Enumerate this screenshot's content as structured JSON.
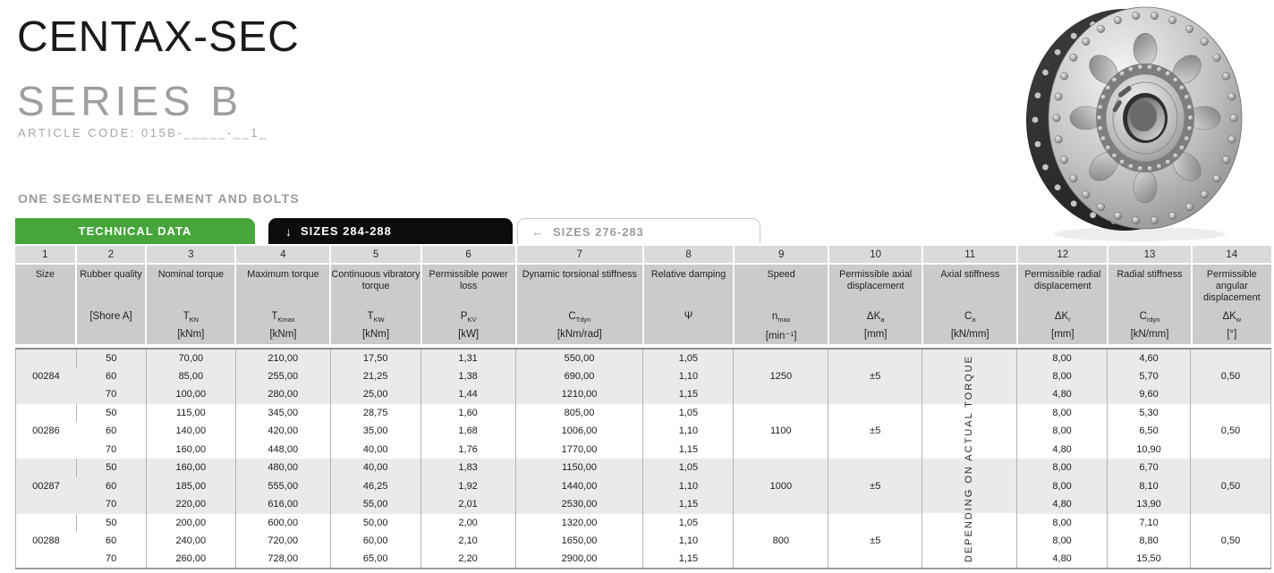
{
  "colors": {
    "accent_green": "#46a63b",
    "tab_black": "#0c0c0c",
    "tab_inactive_text": "#9c9c9c",
    "header_band_bg": "#cbcbcb",
    "number_strip_bg": "#dadada",
    "row_group_gray": "#eaeaea",
    "grid_line": "#b3b3b3"
  },
  "masthead": {
    "title": "CENTAX-SEC",
    "subtitle": "SERIES B",
    "article_code": "ARTICLE CODE: 015B-_____-__1_",
    "section_label": "ONE SEGMENTED ELEMENT AND BOLTS"
  },
  "tabs": [
    {
      "label": "TECHNICAL DATA",
      "icon": "",
      "icon_glyph": "",
      "state": "active-green"
    },
    {
      "label": "SIZES 284-288",
      "icon": "down-arrow-icon",
      "icon_glyph": "↓",
      "state": "active-black"
    },
    {
      "label": "SIZES 276-283",
      "icon": "left-arrow-icon",
      "icon_glyph": "←",
      "state": "inactive"
    }
  ],
  "product_image": {
    "description": "metallic flexible coupling disc with rim bolts, oval holes and splined hub"
  },
  "table": {
    "columns": [
      {
        "num": "1",
        "name": "Size",
        "symbol": {
          "base": ""
        },
        "unit": ""
      },
      {
        "num": "2",
        "name": "Rubber quality",
        "symbol": {
          "base": "[Shore A]"
        },
        "unit": ""
      },
      {
        "num": "3",
        "name": "Nominal torque",
        "symbol": {
          "base": "T",
          "sub": "KN"
        },
        "unit": "[kNm]"
      },
      {
        "num": "4",
        "name": "Maximum torque",
        "symbol": {
          "base": "T",
          "sub": "Kmax"
        },
        "unit": "[kNm]"
      },
      {
        "num": "5",
        "name": "Continuous vibratory torque",
        "symbol": {
          "base": "T",
          "sub": "KW"
        },
        "unit": "[kNm]"
      },
      {
        "num": "6",
        "name": "Permissible power loss",
        "symbol": {
          "base": "P",
          "sub": "KV"
        },
        "unit": "[kW]"
      },
      {
        "num": "7",
        "name": "Dynamic torsional stiffness",
        "symbol": {
          "base": "C",
          "sub": "Tdyn"
        },
        "unit": "[kNm/rad]"
      },
      {
        "num": "8",
        "name": "Relative damping",
        "symbol": {
          "base": "Ψ"
        },
        "unit": ""
      },
      {
        "num": "9",
        "name": "Speed",
        "symbol": {
          "base": "n",
          "sub": "max"
        },
        "unit": "[min⁻¹]"
      },
      {
        "num": "10",
        "name": "Permissible axial displacement",
        "symbol": {
          "base": "ΔK",
          "sub": "a"
        },
        "unit": "[mm]"
      },
      {
        "num": "11",
        "name": "Axial stiffness",
        "symbol": {
          "base": "C",
          "sub": "a"
        },
        "unit": "[kN/mm]"
      },
      {
        "num": "12",
        "name": "Permissible radial displacement",
        "symbol": {
          "base": "ΔK",
          "sub": "r"
        },
        "unit": "[mm]"
      },
      {
        "num": "13",
        "name": "Radial stiffness",
        "symbol": {
          "base": "C",
          "sub": "rdyn"
        },
        "unit": "[kN/mm]"
      },
      {
        "num": "14",
        "name": "Permissible angular displacement",
        "symbol": {
          "base": "ΔK",
          "sub": "w"
        },
        "unit": "[°]"
      }
    ],
    "axial_stiffness_note": "DEPENDING ON ACTUAL TORQUE",
    "groups": [
      {
        "size": "00284",
        "speed": "1250",
        "axial_displacement": "±5",
        "angular_displacement": "0,50",
        "rows": [
          {
            "shore": "50",
            "nominal": "70,00",
            "maximum": "210,00",
            "vibratory": "17,50",
            "power_loss": "1,31",
            "torsional_stiffness": "550,00",
            "damping": "1,05",
            "radial_displacement": "8,00",
            "radial_stiffness": "4,60"
          },
          {
            "shore": "60",
            "nominal": "85,00",
            "maximum": "255,00",
            "vibratory": "21,25",
            "power_loss": "1,38",
            "torsional_stiffness": "690,00",
            "damping": "1,10",
            "radial_displacement": "8,00",
            "radial_stiffness": "5,70"
          },
          {
            "shore": "70",
            "nominal": "100,00",
            "maximum": "280,00",
            "vibratory": "25,00",
            "power_loss": "1,44",
            "torsional_stiffness": "1210,00",
            "damping": "1,15",
            "radial_displacement": "4,80",
            "radial_stiffness": "9,60"
          }
        ]
      },
      {
        "size": "00286",
        "speed": "1100",
        "axial_displacement": "±5",
        "angular_displacement": "0,50",
        "rows": [
          {
            "shore": "50",
            "nominal": "115,00",
            "maximum": "345,00",
            "vibratory": "28,75",
            "power_loss": "1,60",
            "torsional_stiffness": "805,00",
            "damping": "1,05",
            "radial_displacement": "8,00",
            "radial_stiffness": "5,30"
          },
          {
            "shore": "60",
            "nominal": "140,00",
            "maximum": "420,00",
            "vibratory": "35,00",
            "power_loss": "1,68",
            "torsional_stiffness": "1006,00",
            "damping": "1,10",
            "radial_displacement": "8,00",
            "radial_stiffness": "6,50"
          },
          {
            "shore": "70",
            "nominal": "160,00",
            "maximum": "448,00",
            "vibratory": "40,00",
            "power_loss": "1,76",
            "torsional_stiffness": "1770,00",
            "damping": "1,15",
            "radial_displacement": "4,80",
            "radial_stiffness": "10,90"
          }
        ]
      },
      {
        "size": "00287",
        "speed": "1000",
        "axial_displacement": "±5",
        "angular_displacement": "0,50",
        "rows": [
          {
            "shore": "50",
            "nominal": "160,00",
            "maximum": "480,00",
            "vibratory": "40,00",
            "power_loss": "1,83",
            "torsional_stiffness": "1150,00",
            "damping": "1,05",
            "radial_displacement": "8,00",
            "radial_stiffness": "6,70"
          },
          {
            "shore": "60",
            "nominal": "185,00",
            "maximum": "555,00",
            "vibratory": "46,25",
            "power_loss": "1,92",
            "torsional_stiffness": "1440,00",
            "damping": "1,10",
            "radial_displacement": "8,00",
            "radial_stiffness": "8,10"
          },
          {
            "shore": "70",
            "nominal": "220,00",
            "maximum": "616,00",
            "vibratory": "55,00",
            "power_loss": "2,01",
            "torsional_stiffness": "2530,00",
            "damping": "1,15",
            "radial_displacement": "4,80",
            "radial_stiffness": "13,90"
          }
        ]
      },
      {
        "size": "00288",
        "speed": "800",
        "axial_displacement": "±5",
        "angular_displacement": "0,50",
        "rows": [
          {
            "shore": "50",
            "nominal": "200,00",
            "maximum": "600,00",
            "vibratory": "50,00",
            "power_loss": "2,00",
            "torsional_stiffness": "1320,00",
            "damping": "1,05",
            "radial_displacement": "8,00",
            "radial_stiffness": "7,10"
          },
          {
            "shore": "60",
            "nominal": "240,00",
            "maximum": "720,00",
            "vibratory": "60,00",
            "power_loss": "2,10",
            "torsional_stiffness": "1650,00",
            "damping": "1,10",
            "radial_displacement": "8,00",
            "radial_stiffness": "8,80"
          },
          {
            "shore": "70",
            "nominal": "260,00",
            "maximum": "728,00",
            "vibratory": "65,00",
            "power_loss": "2,20",
            "torsional_stiffness": "2900,00",
            "damping": "1,15",
            "radial_displacement": "4,80",
            "radial_stiffness": "15,50"
          }
        ]
      }
    ]
  }
}
